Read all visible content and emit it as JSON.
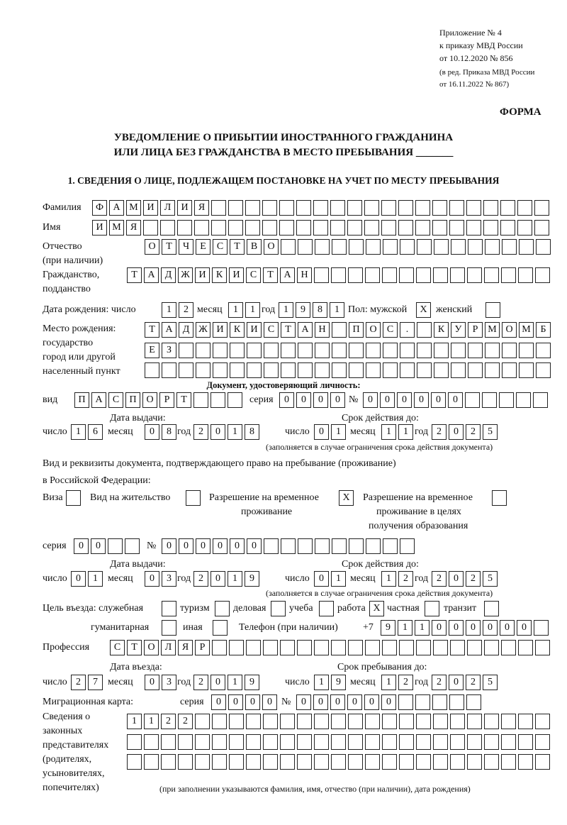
{
  "header": {
    "appendix": "Приложение № 4",
    "order": "к приказу МВД России",
    "order_date": "от 10.12.2020 № 856",
    "revision1": "(в ред. Приказа МВД России",
    "revision2": "от 16.11.2022 № 867)",
    "form": "ФОРМА",
    "title1": "УВЕДОМЛЕНИЕ О ПРИБЫТИИ ИНОСТРАННОГО ГРАЖДАНИНА",
    "title2": "ИЛИ ЛИЦА БЕЗ ГРАЖДАНСТВА В МЕСТО ПРЕБЫВАНИЯ _______",
    "section1": "1. СВЕДЕНИЯ О ЛИЦЕ, ПОДЛЕЖАЩЕМ ПОСТАНОВКЕ НА УЧЕТ ПО МЕСТУ ПРЕБЫВАНИЯ"
  },
  "labels": {
    "surname": "Фамилия",
    "name": "Имя",
    "patronymic": "Отчество",
    "patronymic2": "(при наличии)",
    "citizenship": "Гражданство,",
    "citizenship2": "подданство",
    "birth_date": "Дата рождения:  число",
    "month": "месяц",
    "year": "год",
    "day": "число",
    "sex": "Пол: мужской",
    "female": "женский",
    "birthplace1": "Место рождения:",
    "birthplace2": "государство",
    "birthplace3": "город или другой",
    "birthplace4": "населенный пункт",
    "id_doc": "Документ, удостоверяющий личность:",
    "kind": "вид",
    "series": "серия",
    "number": "№",
    "issue_date": "Дата выдачи:",
    "valid_until": "Срок действия до:",
    "valid_note": "(заполняется в случае ограничения срока действия документа)",
    "right_doc1": "Вид и реквизиты документа, подтверждающего право на пребывание (проживание)",
    "right_doc2": "в Российской Федерации:",
    "visa": "Виза",
    "residence": "Вид на жительство",
    "trp1": "Разрешение на временное",
    "trp2": "проживание",
    "trpe1": "Разрешение на временное",
    "trpe2": "проживание в целях",
    "trpe3": "получения образования",
    "purpose": "Цель въезда: служебная",
    "tourism": "туризм",
    "business": "деловая",
    "study": "учеба",
    "work": "работа",
    "private": "частная",
    "transit": "транзит",
    "humanitarian": "гуманитарная",
    "other": "иная",
    "phone": "Телефон (при наличии)",
    "phone_prefix": "+7",
    "profession": "Профессия",
    "entry_date": "Дата въезда:",
    "stay_until": "Срок пребывания до:",
    "migration_card": "Миграционная карта:",
    "reps1": "Сведения о",
    "reps2": "законных",
    "reps3": "представителях",
    "reps4": "(родителях,",
    "reps5": "усыновителях,",
    "reps6": "попечителях)",
    "reps_note": "(при заполнении указываются фамилия, имя, отчество (при наличии), дата рождения)"
  },
  "values": {
    "surname": [
      "Ф",
      "А",
      "М",
      "И",
      "Л",
      "И",
      "Я"
    ],
    "name": [
      "И",
      "М",
      "Я"
    ],
    "patronymic": [
      "О",
      "Т",
      "Ч",
      "Е",
      "С",
      "Т",
      "В",
      "О"
    ],
    "citizenship": [
      "Т",
      "А",
      "Д",
      "Ж",
      "И",
      "К",
      "И",
      "С",
      "Т",
      "А",
      "Н"
    ],
    "birth_day": [
      "1",
      "2"
    ],
    "birth_month": [
      "1",
      "1"
    ],
    "birth_year": [
      "1",
      "9",
      "8",
      "1"
    ],
    "sex_male": [
      "X"
    ],
    "sex_female": [],
    "birthplace1": [
      "Т",
      "А",
      "Д",
      "Ж",
      "И",
      "К",
      "И",
      "С",
      "Т",
      "А",
      "Н",
      "",
      "П",
      "О",
      "С",
      ".",
      "",
      "К",
      "У",
      "Р",
      "М",
      "О",
      "М",
      "Б"
    ],
    "birthplace2": [
      "Е",
      "З"
    ],
    "birthplace3": [],
    "id_kind": [
      "П",
      "А",
      "С",
      "П",
      "О",
      "Р",
      "Т"
    ],
    "id_series": [
      "0",
      "0",
      "0",
      "0"
    ],
    "id_number": [
      "0",
      "0",
      "0",
      "0",
      "0",
      "0"
    ],
    "id_issue_day": [
      "1",
      "6"
    ],
    "id_issue_month": [
      "0",
      "8"
    ],
    "id_issue_year": [
      "2",
      "0",
      "1",
      "8"
    ],
    "id_valid_day": [
      "0",
      "1"
    ],
    "id_valid_month": [
      "1",
      "1"
    ],
    "id_valid_year": [
      "2",
      "0",
      "2",
      "5"
    ],
    "visa": [],
    "residence": [],
    "trp": [
      "X"
    ],
    "trpe": [],
    "rd_series": [
      "0",
      "0"
    ],
    "rd_number": [
      "0",
      "0",
      "0",
      "0",
      "0",
      "0"
    ],
    "rd_issue_day": [
      "0",
      "1"
    ],
    "rd_issue_month": [
      "0",
      "3"
    ],
    "rd_issue_year": [
      "2",
      "0",
      "1",
      "9"
    ],
    "rd_valid_day": [
      "0",
      "1"
    ],
    "rd_valid_month": [
      "1",
      "2"
    ],
    "rd_valid_year": [
      "2",
      "0",
      "2",
      "5"
    ],
    "p_official": [],
    "p_tourism": [],
    "p_business": [],
    "p_study": [],
    "p_work": [
      "X"
    ],
    "p_private": [],
    "p_transit": [],
    "p_humanitarian": [],
    "p_other": [],
    "phone": [
      "9",
      "1",
      "1",
      "0",
      "0",
      "0",
      "0",
      "0",
      "0"
    ],
    "profession": [
      "С",
      "Т",
      "О",
      "Л",
      "Я",
      "Р"
    ],
    "entry_day": [
      "2",
      "7"
    ],
    "entry_month": [
      "0",
      "3"
    ],
    "entry_year": [
      "2",
      "0",
      "1",
      "9"
    ],
    "stay_day": [
      "1",
      "9"
    ],
    "stay_month": [
      "1",
      "2"
    ],
    "stay_year": [
      "2",
      "0",
      "2",
      "5"
    ],
    "mc_series": [
      "0",
      "0",
      "0",
      "0"
    ],
    "mc_number": [
      "0",
      "0",
      "0",
      "0",
      "0",
      "0"
    ],
    "reps1": [
      "1",
      "1",
      "2",
      "2"
    ],
    "reps2": [],
    "reps3": []
  }
}
